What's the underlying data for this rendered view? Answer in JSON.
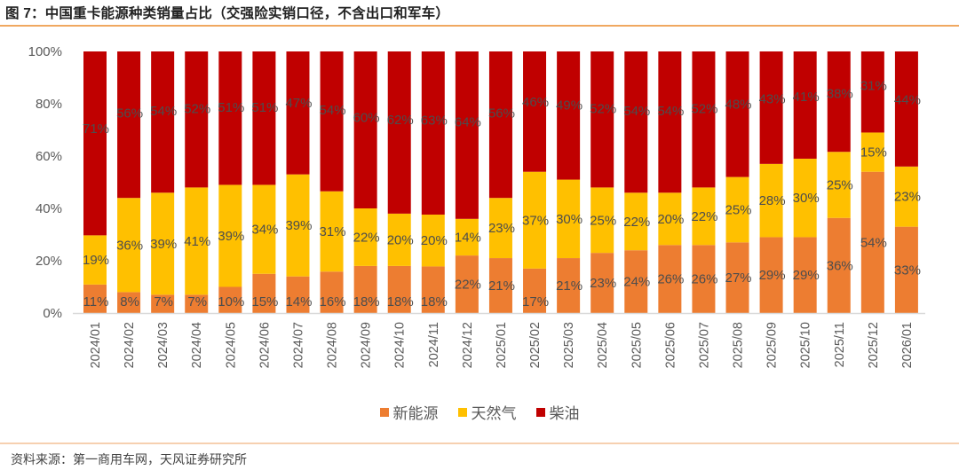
{
  "header": {
    "title": "图 7：中国重卡能源种类销量占比（交强险实销口径，不含出口和军车）"
  },
  "footer": {
    "source": "资料来源：第一商用车网，天风证券研究所"
  },
  "colors": {
    "new_energy": "#ED7D31",
    "natural_gas": "#FFC000",
    "diesel": "#C00000",
    "axis": "#D9D9D9"
  },
  "chart_data": {
    "type": "bar",
    "stacked": "percent",
    "title": "图 7：中国重卡能源种类销量占比（交强险实销口径，不含出口和军车）",
    "xlabel": "",
    "ylabel": "",
    "ylim": [
      0,
      100
    ],
    "yticks": [
      "0%",
      "20%",
      "40%",
      "60%",
      "80%",
      "100%"
    ],
    "grid": false,
    "legend_position": "bottom",
    "categories": [
      "2024/01",
      "2024/02",
      "2024/03",
      "2024/04",
      "2024/05",
      "2024/06",
      "2024/07",
      "2024/08",
      "2024/09",
      "2024/10",
      "2024/11",
      "2024/12",
      "2025/01",
      "2025/02",
      "2025/03",
      "2025/04",
      "2025/05",
      "2025/06",
      "2025/07",
      "2025/08",
      "2025/09",
      "2025/10",
      "2025/11",
      "2025/12",
      "2026/01"
    ],
    "series": [
      {
        "name": "新能源",
        "color": "#ED7D31",
        "values": [
          11,
          8,
          7,
          7,
          10,
          15,
          14,
          16,
          18,
          18,
          18,
          22,
          21,
          17,
          21,
          23,
          24,
          26,
          26,
          27,
          29,
          29,
          36,
          54,
          33
        ]
      },
      {
        "name": "天然气",
        "color": "#FFC000",
        "values": [
          19,
          36,
          39,
          41,
          39,
          34,
          39,
          31,
          22,
          20,
          20,
          14,
          23,
          37,
          30,
          25,
          22,
          20,
          22,
          25,
          28,
          30,
          25,
          15,
          23
        ]
      },
      {
        "name": "柴油",
        "color": "#C00000",
        "values": [
          71,
          56,
          54,
          52,
          51,
          51,
          47,
          54,
          60,
          62,
          63,
          64,
          56,
          46,
          49,
          52,
          54,
          54,
          52,
          48,
          43,
          41,
          38,
          31,
          44
        ]
      }
    ]
  }
}
